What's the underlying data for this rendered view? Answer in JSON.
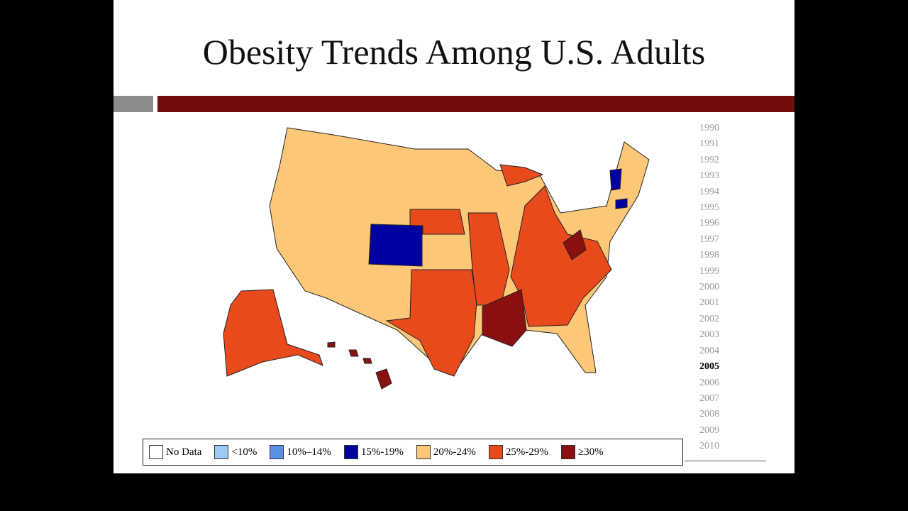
{
  "header": {
    "title": "Obesity Trends Among U.S. Adults"
  },
  "years": [
    "1990",
    "1991",
    "1992",
    "1993",
    "1994",
    "1995",
    "1996",
    "1997",
    "1998",
    "1999",
    "2000",
    "2001",
    "2002",
    "2003",
    "2004",
    "2005",
    "2006",
    "2007",
    "2008",
    "2009",
    "2010"
  ],
  "legend": [
    {
      "label": "No Data",
      "color": "#ffffff"
    },
    {
      "label": "<10%",
      "color": "#9ccaf3"
    },
    {
      "label": "10%–14%",
      "color": "#5b8fe6"
    },
    {
      "label": "15%-19%",
      "color": "#0000a0"
    },
    {
      "label": "20%-24%",
      "color": "#fcc878"
    },
    {
      "label": "25%-29%",
      "color": "#e84a1c"
    },
    {
      "label": "≥30%",
      "color": "#8a1010"
    }
  ]
}
